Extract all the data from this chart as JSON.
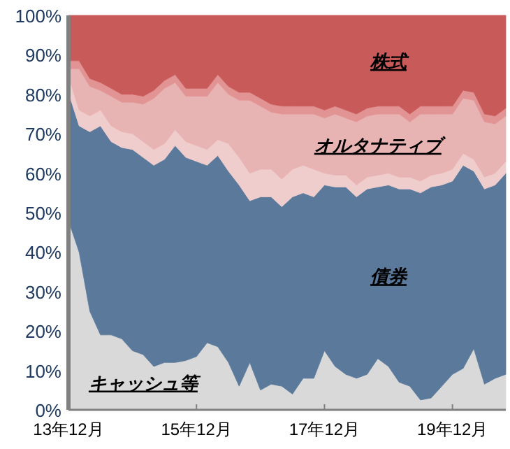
{
  "chart_data": {
    "type": "area",
    "stacked": true,
    "legend": false,
    "grid": false,
    "categories": [
      "13年12月",
      null,
      null,
      null,
      null,
      null,
      null,
      null,
      null,
      null,
      null,
      null,
      "15年12月",
      null,
      null,
      null,
      null,
      null,
      null,
      null,
      null,
      null,
      null,
      null,
      "17年12月",
      null,
      null,
      null,
      null,
      null,
      null,
      null,
      null,
      null,
      null,
      null,
      "19年12月",
      null,
      null,
      null,
      null,
      null
    ],
    "ylim": [
      0,
      100
    ],
    "yticks": [
      {
        "value": 0,
        "label": "0%"
      },
      {
        "value": 10,
        "label": "10%"
      },
      {
        "value": 20,
        "label": "20%"
      },
      {
        "value": 30,
        "label": "30%"
      },
      {
        "value": 40,
        "label": "40%"
      },
      {
        "value": 50,
        "label": "50%"
      },
      {
        "value": 60,
        "label": "60%"
      },
      {
        "value": 70,
        "label": "70%"
      },
      {
        "value": 80,
        "label": "80%"
      },
      {
        "value": 90,
        "label": "90%"
      },
      {
        "value": 100,
        "label": "100%"
      }
    ],
    "series": [
      {
        "name": "キャッシュ等",
        "color": "#d9d9d9",
        "values": [
          48,
          40,
          25,
          19,
          19,
          18,
          15,
          14,
          11,
          12,
          12,
          12.5,
          13.5,
          17,
          16,
          12,
          6,
          12,
          5,
          6.5,
          6,
          4,
          8,
          8,
          15,
          11,
          9,
          8,
          9,
          13,
          11,
          7,
          6,
          2.5,
          3,
          6,
          9,
          10.5,
          15.5,
          6.5,
          8,
          9
        ]
      },
      {
        "name": "債券",
        "color": "#5b7a9b",
        "values": [
          32.5,
          32,
          45.5,
          53,
          49,
          48.5,
          51,
          50,
          51,
          51.5,
          55,
          51.5,
          49.5,
          45,
          48.5,
          48.5,
          51,
          41,
          49,
          47.5,
          45.5,
          50,
          47,
          46,
          42,
          45.5,
          47.5,
          46,
          47,
          43.5,
          46,
          49,
          50,
          52.5,
          53.5,
          51,
          49,
          51.5,
          45,
          49.5,
          49,
          51
        ]
      },
      {
        "color": "#efcdcd",
        "values": [
          4,
          4,
          4,
          4,
          4,
          4,
          4,
          4,
          4,
          4,
          4,
          4,
          4,
          4,
          4,
          7,
          7,
          7,
          7,
          7,
          7,
          7,
          7,
          7,
          3,
          3,
          3,
          3,
          3,
          3,
          3,
          3,
          3,
          3,
          3,
          3,
          3,
          3,
          3,
          3,
          3,
          3
        ]
      },
      {
        "name": "オルタナティブ",
        "color": "#e8b3b3",
        "values": [
          2,
          10.5,
          7.5,
          5,
          7.5,
          7.5,
          8,
          9.5,
          13,
          14,
          12,
          11.5,
          12.5,
          13.5,
          14.5,
          12.5,
          14.5,
          18.5,
          16,
          14.5,
          16.5,
          14,
          13,
          14,
          14,
          15.5,
          14.5,
          16,
          15.5,
          15.5,
          15,
          16,
          14,
          17,
          15.5,
          15,
          14,
          14,
          15,
          14,
          12.5,
          11.5
        ]
      },
      {
        "color": "#e29393",
        "values": [
          2,
          2,
          2,
          2,
          2,
          2,
          2,
          2,
          2,
          2,
          2,
          2,
          2,
          2,
          2,
          2,
          2,
          2,
          2,
          2,
          2,
          2,
          2,
          2,
          2,
          2,
          2,
          2,
          2,
          2,
          2,
          2,
          2,
          2,
          2,
          2,
          2,
          2,
          2,
          2,
          2,
          2
        ]
      },
      {
        "name": "株式",
        "color": "#c95a5a",
        "values": [
          11.5,
          11.5,
          16,
          17,
          18.5,
          20,
          20,
          20.5,
          19,
          16.5,
          15,
          18.5,
          18.5,
          18.5,
          15,
          18,
          19.5,
          19.5,
          21,
          22.5,
          23,
          23,
          23,
          23,
          24,
          23,
          24,
          25,
          23.5,
          23,
          23,
          23,
          25,
          23,
          23,
          23,
          23,
          19,
          19.5,
          25,
          25.5,
          23.5
        ]
      }
    ]
  }
}
